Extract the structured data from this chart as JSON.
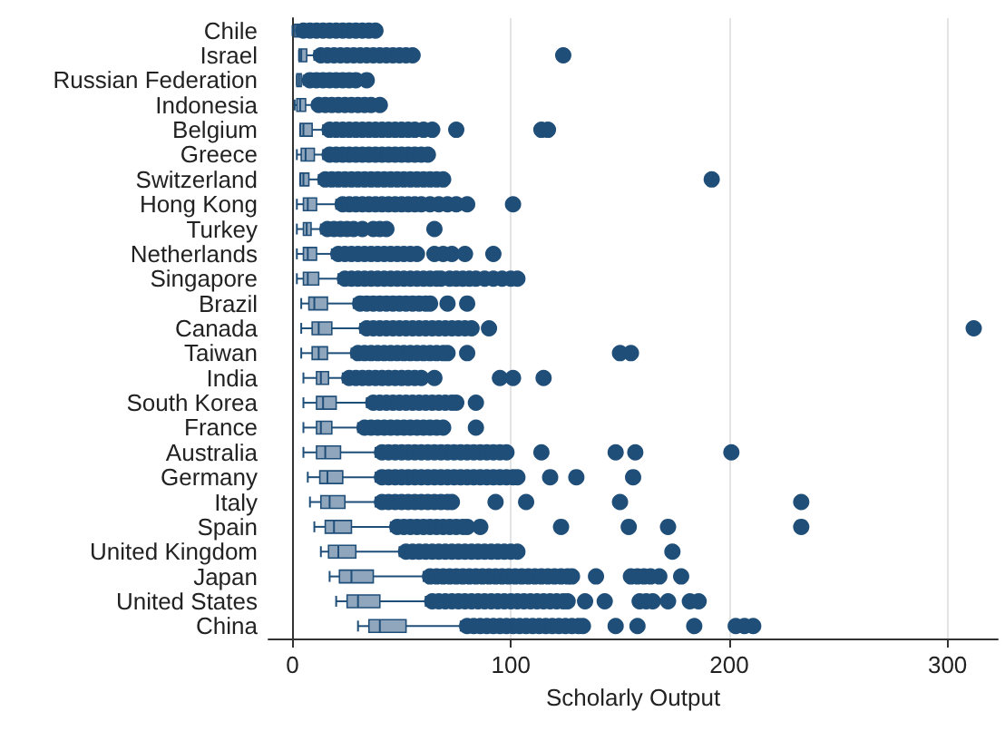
{
  "chart_data": {
    "type": "box",
    "orientation": "horizontal",
    "xlabel": "Scholarly Output",
    "color": "#1f4e79",
    "marker": "circle",
    "grid": "x",
    "categories": [
      "Chile",
      "Israel",
      "Russian Federation",
      "Indonesia",
      "Belgium",
      "Greece",
      "Switzerland",
      "Hong Kong",
      "Turkey",
      "Netherlands",
      "Singapore",
      "Brazil",
      "Canada",
      "Taiwan",
      "India",
      "South Korea",
      "France",
      "Australia",
      "Germany",
      "Italy",
      "Spain",
      "United Kingdom",
      "Japan",
      "United States",
      "China"
    ],
    "xlim": [
      -11,
      323
    ],
    "xticks": [
      0,
      100,
      200,
      300
    ],
    "boxes": [
      {
        "low": 0,
        "q1": 1,
        "median": 2,
        "q3": 3,
        "high": 4,
        "outliers": [
          5,
          8,
          11,
          14,
          17,
          20,
          23,
          26,
          29,
          32,
          35,
          38
        ]
      },
      {
        "low": 3,
        "q1": 3,
        "median": 4,
        "q3": 6.5,
        "high": 10,
        "outliers": [
          13,
          16,
          19,
          22,
          25,
          28,
          31,
          34,
          37,
          40,
          43,
          46,
          49,
          52,
          55,
          124
        ]
      },
      {
        "low": 2,
        "q1": 2,
        "median": 3,
        "q3": 4,
        "high": 5,
        "outliers": [
          8,
          11,
          14,
          17,
          20,
          23,
          26,
          29,
          34
        ]
      },
      {
        "low": 1,
        "q1": 2,
        "median": 3.5,
        "q3": 6,
        "high": 11,
        "outliers": [
          12,
          15,
          18,
          21,
          24,
          27,
          30,
          33,
          36,
          40
        ]
      },
      {
        "low": 3.5,
        "q1": 3.5,
        "median": 5,
        "q3": 9,
        "high": 14,
        "outliers": [
          17,
          20,
          23,
          26,
          29,
          32,
          35,
          38,
          41,
          44,
          47,
          50,
          53,
          56,
          60,
          64,
          75,
          114,
          117
        ]
      },
      {
        "low": 2,
        "q1": 4,
        "median": 6,
        "q3": 10,
        "high": 14,
        "outliers": [
          17,
          20,
          23,
          26,
          29,
          32,
          35,
          38,
          41,
          44,
          47,
          50,
          53,
          56,
          59,
          62
        ]
      },
      {
        "low": 3.5,
        "q1": 3.5,
        "median": 5,
        "q3": 7.5,
        "high": 12,
        "outliers": [
          15,
          18,
          21,
          24,
          27,
          30,
          33,
          36,
          39,
          42,
          45,
          48,
          51,
          54,
          57,
          60,
          63,
          66,
          69,
          192
        ]
      },
      {
        "low": 2,
        "q1": 5,
        "median": 7,
        "q3": 11,
        "high": 20,
        "outliers": [
          23,
          26,
          29,
          32,
          35,
          38,
          41,
          44,
          47,
          50,
          53,
          56,
          59,
          63,
          67,
          71,
          75,
          80,
          101
        ]
      },
      {
        "low": 2,
        "q1": 5,
        "median": 6.5,
        "q3": 8.5,
        "high": 13,
        "outliers": [
          16,
          19,
          22,
          25,
          28,
          32,
          37,
          40,
          43,
          65
        ]
      },
      {
        "low": 2,
        "q1": 5,
        "median": 7,
        "q3": 11,
        "high": 18,
        "outliers": [
          21,
          24,
          27,
          30,
          33,
          36,
          39,
          42,
          45,
          48,
          51,
          54,
          57,
          65,
          69,
          73,
          79,
          92
        ]
      },
      {
        "low": 2,
        "q1": 5,
        "median": 7,
        "q3": 12,
        "high": 21,
        "outliers": [
          24,
          27,
          30,
          33,
          36,
          39,
          42,
          45,
          48,
          51,
          54,
          57,
          60,
          63,
          66,
          68,
          72,
          75,
          78,
          81,
          84,
          88,
          92,
          96,
          100,
          103
        ]
      },
      {
        "low": 4,
        "q1": 7.5,
        "median": 10,
        "q3": 16,
        "high": 28,
        "outliers": [
          31,
          34,
          37,
          40,
          43,
          46,
          49,
          52,
          55,
          58,
          61,
          63,
          71,
          80
        ]
      },
      {
        "low": 4,
        "q1": 9,
        "median": 12,
        "q3": 18,
        "high": 31,
        "outliers": [
          34,
          37,
          40,
          43,
          46,
          49,
          52,
          55,
          58,
          61,
          64,
          67,
          70,
          73,
          76,
          79,
          82,
          90,
          312
        ]
      },
      {
        "low": 4,
        "q1": 9,
        "median": 12,
        "q3": 16,
        "high": 27,
        "outliers": [
          30,
          33,
          36,
          39,
          42,
          45,
          48,
          51,
          54,
          57,
          60,
          63,
          66,
          69,
          71,
          80,
          150,
          155
        ]
      },
      {
        "low": 5,
        "q1": 11,
        "median": 13,
        "q3": 16.5,
        "high": 23,
        "outliers": [
          26,
          29,
          32,
          35,
          38,
          41,
          44,
          47,
          50,
          53,
          56,
          59,
          65,
          95,
          101,
          115
        ]
      },
      {
        "low": 5,
        "q1": 11,
        "median": 14,
        "q3": 20,
        "high": 34,
        "outliers": [
          37,
          40,
          43,
          46,
          49,
          52,
          55,
          58,
          61,
          64,
          67,
          70,
          73,
          75,
          84
        ]
      },
      {
        "low": 5,
        "q1": 11,
        "median": 13,
        "q3": 18,
        "high": 30,
        "outliers": [
          33,
          36,
          39,
          42,
          45,
          48,
          51,
          54,
          57,
          60,
          63,
          66,
          69,
          84
        ]
      },
      {
        "low": 5,
        "q1": 11,
        "median": 15,
        "q3": 22,
        "high": 38,
        "outliers": [
          41,
          44,
          47,
          50,
          53,
          56,
          59,
          62,
          65,
          68,
          71,
          74,
          77,
          80,
          83,
          86,
          89,
          92,
          95,
          98,
          114,
          148,
          157,
          201
        ]
      },
      {
        "low": 7,
        "q1": 12.5,
        "median": 16,
        "q3": 23,
        "high": 38,
        "outliers": [
          41,
          44,
          47,
          50,
          53,
          56,
          59,
          62,
          65,
          68,
          71,
          74,
          77,
          80,
          83,
          86,
          89,
          92,
          95,
          98,
          101,
          103,
          118,
          130,
          156
        ]
      },
      {
        "low": 8,
        "q1": 13,
        "median": 17,
        "q3": 24,
        "high": 38,
        "outliers": [
          41,
          44,
          47,
          50,
          53,
          56,
          59,
          62,
          65,
          68,
          71,
          73,
          93,
          107,
          150,
          233
        ]
      },
      {
        "low": 10,
        "q1": 15,
        "median": 19,
        "q3": 27,
        "high": 45,
        "outliers": [
          48,
          51,
          54,
          57,
          60,
          63,
          66,
          69,
          72,
          75,
          78,
          80,
          86,
          123,
          154,
          172,
          233
        ]
      },
      {
        "low": 13,
        "q1": 16.5,
        "median": 21,
        "q3": 29,
        "high": 49,
        "outliers": [
          52,
          55,
          58,
          61,
          64,
          67,
          70,
          73,
          76,
          79,
          82,
          85,
          88,
          91,
          94,
          97,
          100,
          103,
          174
        ]
      },
      {
        "low": 17,
        "q1": 21.5,
        "median": 27,
        "q3": 37,
        "high": 60,
        "outliers": [
          63,
          66,
          69,
          72,
          75,
          78,
          81,
          84,
          87,
          90,
          93,
          96,
          99,
          102,
          105,
          108,
          111,
          114,
          117,
          120,
          123,
          126,
          128,
          139,
          155,
          158,
          161,
          164,
          168,
          178
        ]
      },
      {
        "low": 20,
        "q1": 25,
        "median": 30,
        "q3": 40,
        "high": 61,
        "outliers": [
          64,
          67,
          70,
          73,
          76,
          79,
          82,
          85,
          88,
          91,
          94,
          97,
          100,
          103,
          106,
          109,
          112,
          115,
          118,
          121,
          124,
          126,
          134,
          143,
          159,
          162,
          165,
          172,
          182,
          186
        ]
      },
      {
        "low": 30,
        "q1": 35,
        "median": 40,
        "q3": 52,
        "high": 77,
        "outliers": [
          80,
          83,
          86,
          89,
          92,
          95,
          98,
          101,
          104,
          107,
          110,
          113,
          116,
          119,
          122,
          125,
          128,
          131,
          133,
          148,
          158,
          184,
          203,
          207,
          211
        ]
      }
    ]
  }
}
